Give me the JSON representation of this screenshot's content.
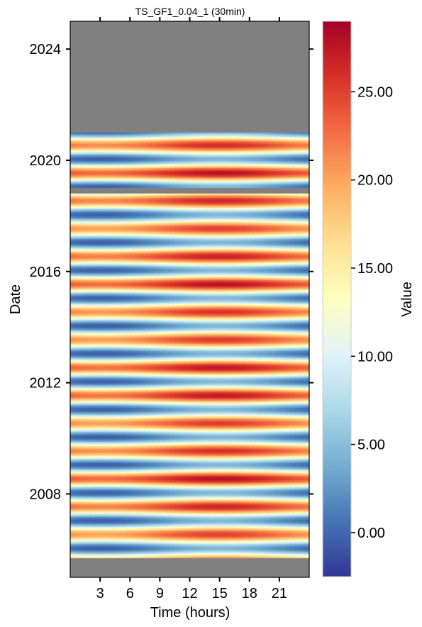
{
  "chart_data": {
    "type": "heatmap",
    "title": "TS_GF1_0.04_1 (30min)",
    "xlabel": "Time (hours)",
    "ylabel": "Date",
    "x_range": [
      0,
      24
    ],
    "x_ticks": [
      3,
      6,
      9,
      12,
      15,
      18,
      21
    ],
    "x_tick_labels": [
      "3",
      "6",
      "9",
      "12",
      "15",
      "18",
      "21"
    ],
    "y_range": [
      2005.0,
      2025.0
    ],
    "y_ticks": [
      2008,
      2012,
      2016,
      2020,
      2024
    ],
    "y_tick_labels": [
      "2008",
      "2012",
      "2016",
      "2020",
      "2024"
    ],
    "data_start": 2005.7,
    "data_end": 2021.0,
    "no_data_color": "#808080",
    "annual_cycle": {
      "summer_peak_value": 24,
      "winter_trough_value": 2,
      "diurnal_amplitude": 2.5,
      "peak_hour": 15
    },
    "gaps": [
      {
        "from": 2018.8,
        "to": 2019.0
      }
    ],
    "colorbar": {
      "label": "Value",
      "min": -2.5,
      "max": 29,
      "ticks": [
        0,
        5,
        10,
        15,
        20,
        25
      ],
      "tick_labels": [
        "0.00",
        "5.00",
        "10.00",
        "15.00",
        "20.00",
        "25.00"
      ],
      "colormap": [
        "#313695",
        "#4575b4",
        "#74add1",
        "#abd9e9",
        "#e0f3f8",
        "#ffffbf",
        "#fee090",
        "#fdae61",
        "#f46d43",
        "#d73027",
        "#a50026"
      ]
    }
  }
}
